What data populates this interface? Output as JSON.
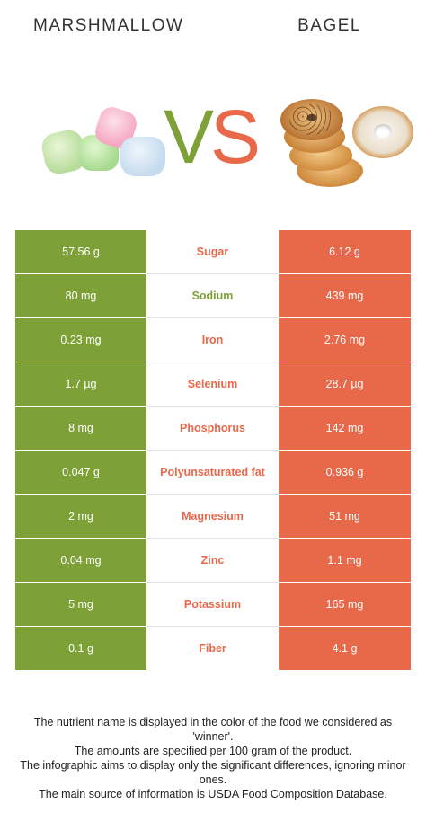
{
  "header": {
    "left_food": "MARSHMALLOW",
    "right_food": "BAGEL",
    "vs_v": "V",
    "vs_s": "S"
  },
  "colors": {
    "marshmallow": "#7da136",
    "bagel": "#e8684a"
  },
  "chart_data": {
    "type": "table",
    "columns": [
      "MARSHMALLOW",
      "nutrient",
      "BAGEL"
    ],
    "rows": [
      {
        "nutrient": "Sugar",
        "left": "57.56 g",
        "right": "6.12 g",
        "winner": "bagel"
      },
      {
        "nutrient": "Sodium",
        "left": "80 mg",
        "right": "439 mg",
        "winner": "marshmallow"
      },
      {
        "nutrient": "Iron",
        "left": "0.23 mg",
        "right": "2.76 mg",
        "winner": "bagel"
      },
      {
        "nutrient": "Selenium",
        "left": "1.7 µg",
        "right": "28.7 µg",
        "winner": "bagel"
      },
      {
        "nutrient": "Phosphorus",
        "left": "8 mg",
        "right": "142 mg",
        "winner": "bagel"
      },
      {
        "nutrient": "Polyunsaturated fat",
        "left": "0.047 g",
        "right": "0.936 g",
        "winner": "bagel"
      },
      {
        "nutrient": "Magnesium",
        "left": "2 mg",
        "right": "51 mg",
        "winner": "bagel"
      },
      {
        "nutrient": "Zinc",
        "left": "0.04 mg",
        "right": "1.1 mg",
        "winner": "bagel"
      },
      {
        "nutrient": "Potassium",
        "left": "5 mg",
        "right": "165 mg",
        "winner": "bagel"
      },
      {
        "nutrient": "Fiber",
        "left": "0.1 g",
        "right": "4.1 g",
        "winner": "bagel"
      }
    ]
  },
  "footer": {
    "line1": "The nutrient name is displayed in the color of the food we considered as 'winner'.",
    "line2": "The amounts are specified per 100 gram of the product.",
    "line3": "The infographic aims to display only the significant differences, ignoring minor ones.",
    "line4": "The main source of information is USDA Food Composition Database."
  }
}
